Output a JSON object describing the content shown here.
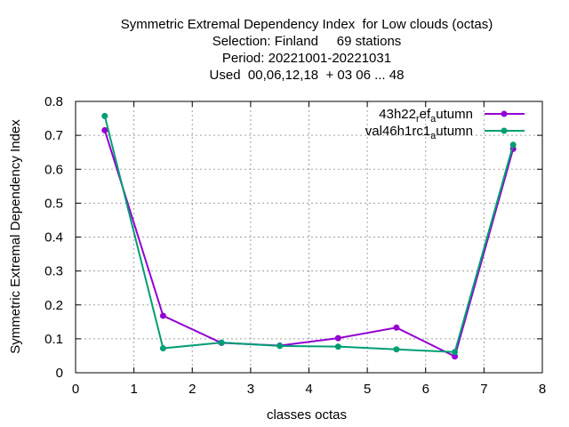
{
  "chart_data": {
    "type": "line",
    "title_lines": [
      "Symmetric Extremal Dependency Index  for Low clouds (octas)",
      "Selection: Finland     69 stations",
      "Period: 20221001-20221031",
      "Used  00,06,12,18  + 03 06 ... 48"
    ],
    "xlabel": "classes octas",
    "ylabel": "Symmetric Extremal Dependency Index",
    "xlim": [
      0,
      8
    ],
    "ylim": [
      0,
      0.8
    ],
    "xticks": [
      "0",
      "1",
      "2",
      "3",
      "4",
      "5",
      "6",
      "7",
      "8"
    ],
    "yticks": [
      "0",
      "0.1",
      "0.2",
      "0.3",
      "0.4",
      "0.5",
      "0.6",
      "0.7",
      "0.8"
    ],
    "grid": true,
    "legend_position": "top-right",
    "x": [
      0.5,
      1.5,
      2.5,
      3.5,
      4.5,
      5.5,
      6.5,
      7.5
    ],
    "series": [
      {
        "name": "43h22_ref_autumn",
        "legend_main": "43h22",
        "legend_sub1": "r",
        "legend_mid": "ef",
        "legend_sub2": "a",
        "legend_tail": "utumn",
        "color": "#9400d3",
        "values": [
          0.715,
          0.168,
          0.088,
          0.08,
          0.102,
          0.133,
          0.048,
          0.66
        ]
      },
      {
        "name": "val46h1rc1_autumn",
        "legend_main": "val46h1rc1",
        "legend_sub1": "",
        "legend_mid": "",
        "legend_sub2": "a",
        "legend_tail": "utumn",
        "color": "#009e73",
        "values": [
          0.757,
          0.072,
          0.089,
          0.079,
          0.077,
          0.069,
          0.061,
          0.672
        ]
      }
    ]
  }
}
